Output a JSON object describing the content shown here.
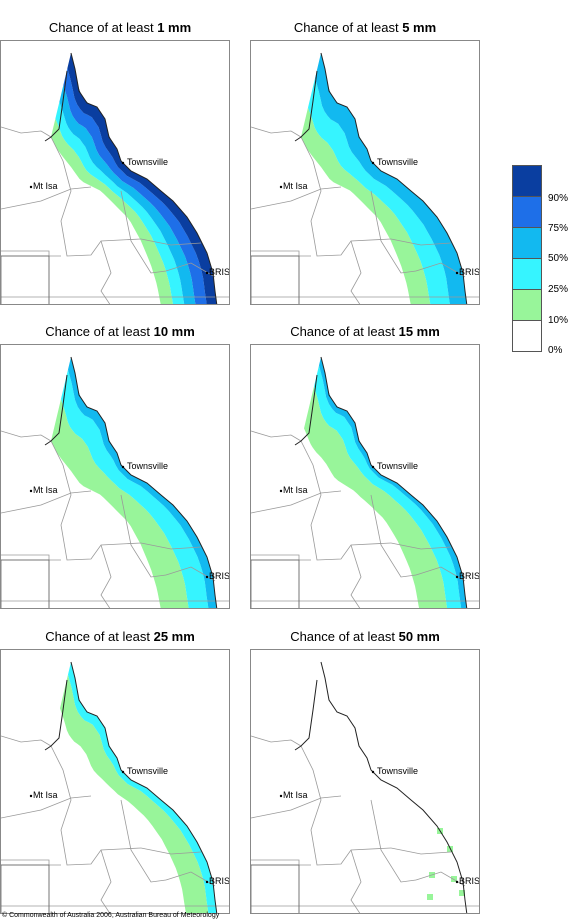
{
  "panels": [
    {
      "prefix": "Chance of at least ",
      "amount": "1 mm",
      "level": 0
    },
    {
      "prefix": "Chance of at least ",
      "amount": "5 mm",
      "level": 1
    },
    {
      "prefix": "Chance of at least ",
      "amount": "10 mm",
      "level": 2
    },
    {
      "prefix": "Chance of at least ",
      "amount": "15 mm",
      "level": 3
    },
    {
      "prefix": "Chance of at least ",
      "amount": "25 mm",
      "level": 4
    },
    {
      "prefix": "Chance of at least ",
      "amount": "50 mm",
      "level": 5
    }
  ],
  "places": {
    "townsville": "Townsville",
    "mt_isa": "Mt Isa",
    "bris": "BRIS"
  },
  "legend": {
    "labels": [
      "90%",
      "75%",
      "50%",
      "25%",
      "10%",
      "0%"
    ],
    "colors": [
      "#0a3ea0",
      "#1e6fe8",
      "#12b9f0",
      "#36f4ff",
      "#98f59a",
      "#ffffff"
    ]
  },
  "copyright": "© Commonwealth of Australia 2006, Australian Bureau of Meteorology"
}
